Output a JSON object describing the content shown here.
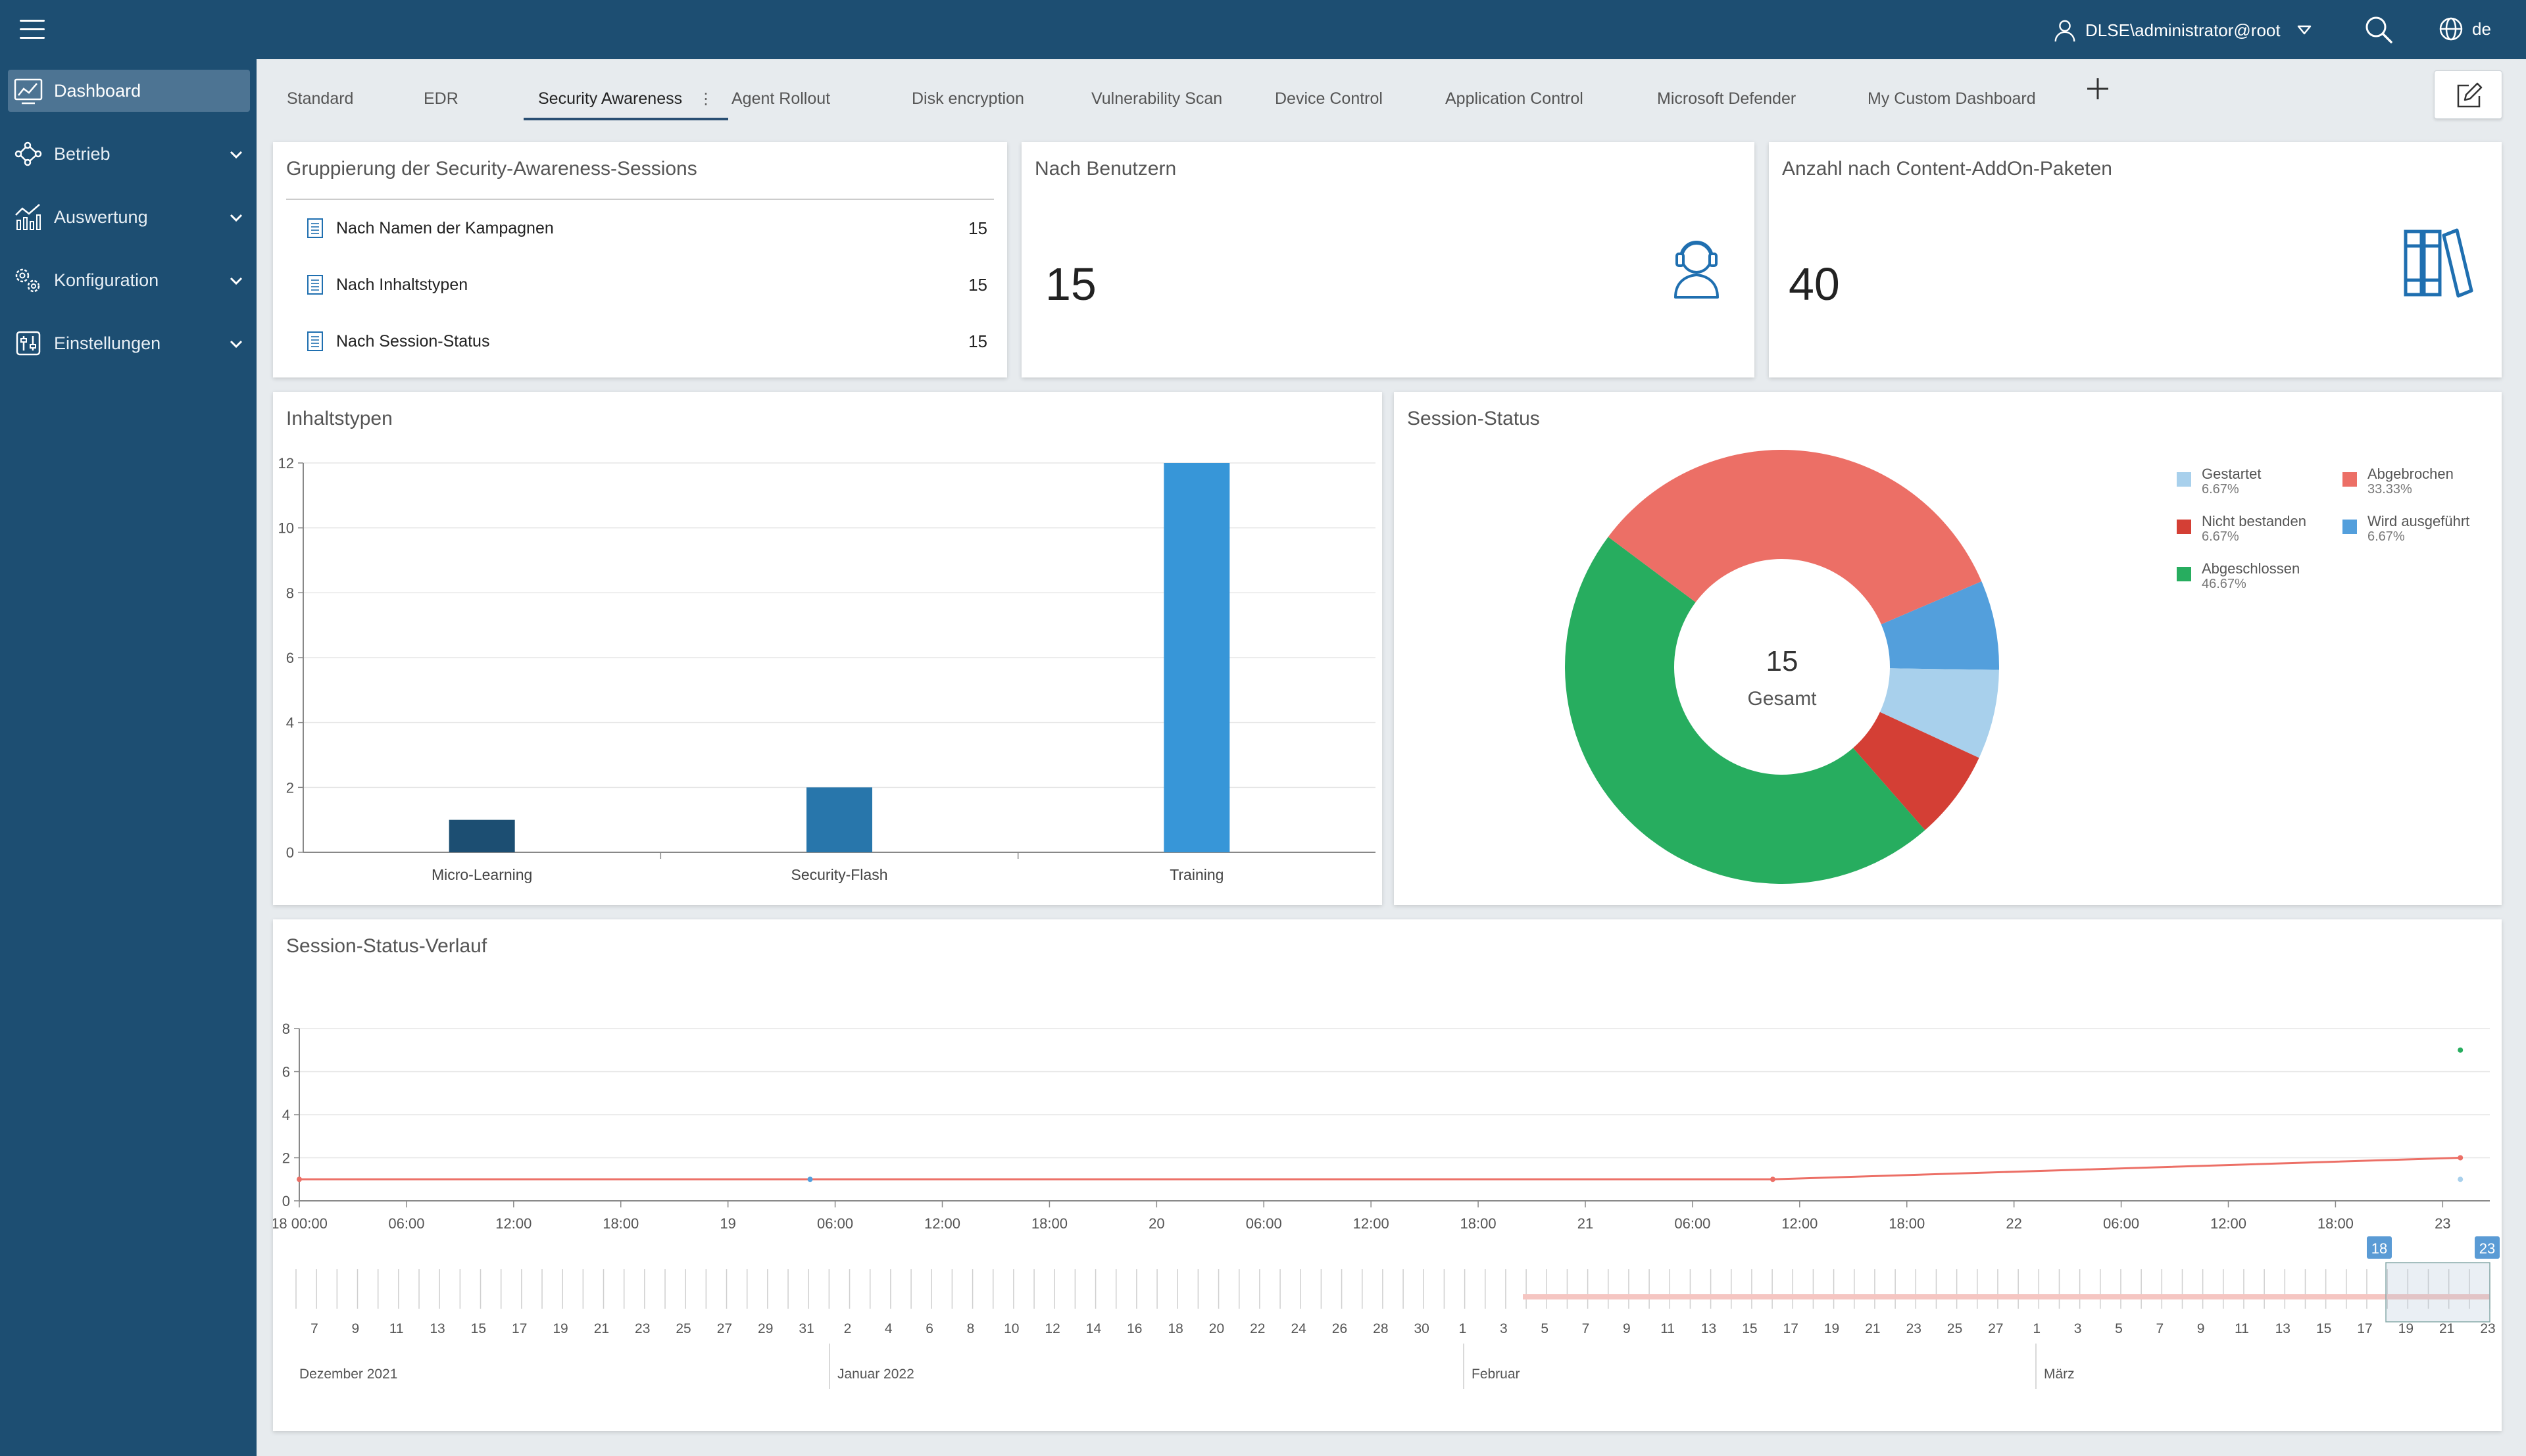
{
  "topbar": {
    "user": "DLSE\\administrator@root",
    "language": "de"
  },
  "sidebar": {
    "items": [
      {
        "label": "Dashboard",
        "icon": "dashboard-icon",
        "active": true
      },
      {
        "label": "Betrieb",
        "icon": "network-icon",
        "expandable": true
      },
      {
        "label": "Auswertung",
        "icon": "analytics-icon",
        "expandable": true
      },
      {
        "label": "Konfiguration",
        "icon": "gears-icon",
        "expandable": true
      },
      {
        "label": "Einstellungen",
        "icon": "sliders-icon",
        "expandable": true
      }
    ]
  },
  "tabs": [
    {
      "label": "Standard"
    },
    {
      "label": "EDR"
    },
    {
      "label": "Security Awareness",
      "active": true
    },
    {
      "label": "Agent Rollout"
    },
    {
      "label": "Disk encryption"
    },
    {
      "label": "Vulnerability Scan"
    },
    {
      "label": "Device Control"
    },
    {
      "label": "Application Control"
    },
    {
      "label": "Microsoft Defender"
    },
    {
      "label": "My Custom Dashboard"
    }
  ],
  "widgets": {
    "grouping": {
      "title": "Gruppierung der Security-Awareness-Sessions",
      "rows": [
        {
          "label": "Nach Namen der Kampagnen",
          "count": "15"
        },
        {
          "label": "Nach Inhaltstypen",
          "count": "15"
        },
        {
          "label": "Nach Session-Status",
          "count": "15"
        }
      ]
    },
    "by_users": {
      "title": "Nach Benutzern",
      "value": "15",
      "icon": "user-headset-icon"
    },
    "by_addons": {
      "title": "Anzahl nach Content-AddOn-Paketen",
      "value": "40",
      "icon": "books-icon"
    },
    "content_types": {
      "title": "Inhaltstypen"
    },
    "session_status": {
      "title": "Session-Status",
      "center_value": "15",
      "center_label": "Gesamt"
    },
    "history": {
      "title": "Session-Status-Verlauf"
    }
  },
  "colors": {
    "brand": "#1d4e72",
    "accent": "#3796d8",
    "started": "#a8d0ec",
    "aborted": "#ec6f66",
    "failed": "#d43f35",
    "running": "#539fdc",
    "completed": "#27ad5f"
  },
  "chart_data": [
    {
      "type": "bar",
      "title": "Inhaltstypen",
      "categories": [
        "Micro-Learning",
        "Security-Flash",
        "Training"
      ],
      "values": [
        1,
        2,
        12
      ],
      "colors": [
        "#1c4e72",
        "#2876ab",
        "#3796d8"
      ],
      "ylim": [
        0,
        12
      ],
      "yticks": [
        0,
        2,
        4,
        6,
        8,
        10,
        12
      ],
      "grid": true
    },
    {
      "type": "pie",
      "title": "Session-Status",
      "total": 15,
      "slices": [
        {
          "label": "Gestartet",
          "value": 1,
          "percent": "6.67%",
          "color": "#a8d0ec"
        },
        {
          "label": "Abgebrochen",
          "value": 5,
          "percent": "33.33%",
          "color": "#ec6f66"
        },
        {
          "label": "Nicht bestanden",
          "value": 1,
          "percent": "6.67%",
          "color": "#d43f35"
        },
        {
          "label": "Wird ausgeführt",
          "value": 1,
          "percent": "6.67%",
          "color": "#539fdc"
        },
        {
          "label": "Abgeschlossen",
          "value": 7,
          "percent": "46.67%",
          "color": "#27ad5f"
        }
      ],
      "legend_position": "right"
    },
    {
      "type": "line",
      "title": "Session-Status-Verlauf",
      "ylim": [
        0,
        8
      ],
      "yticks": [
        0,
        2,
        4,
        6,
        8
      ],
      "x_tick_labels": [
        "18 00:00",
        "06:00",
        "12:00",
        "18:00",
        "19",
        "06:00",
        "12:00",
        "18:00",
        "20",
        "06:00",
        "12:00",
        "18:00",
        "21",
        "06:00",
        "12:00",
        "18:00",
        "22",
        "06:00",
        "12:00",
        "18:00",
        "23"
      ],
      "series": [
        {
          "name": "Abgebrochen",
          "color": "#ec6f66",
          "points": [
            [
              0,
              1
            ],
            [
              3,
              1
            ],
            [
              4.4,
              2
            ]
          ]
        },
        {
          "name": "Wird ausgeführt",
          "color": "#539fdc",
          "points": [
            [
              1.04,
              1
            ]
          ]
        },
        {
          "name": "Abgeschlossen",
          "color": "#27ad5f",
          "points": [
            [
              4.4,
              7
            ]
          ]
        },
        {
          "name": "Gestartet",
          "color": "#a8d0ec",
          "points": [
            [
              4.4,
              1
            ]
          ]
        }
      ],
      "navigator": {
        "day_labels": [
          "7",
          "9",
          "11",
          "13",
          "15",
          "17",
          "19",
          "21",
          "23",
          "25",
          "27",
          "29",
          "31",
          "2",
          "4",
          "6",
          "8",
          "10",
          "12",
          "14",
          "16",
          "18",
          "20",
          "22",
          "24",
          "26",
          "28",
          "30",
          "1",
          "3",
          "5",
          "7",
          "9",
          "11",
          "13",
          "15",
          "17",
          "19",
          "21",
          "23",
          "25",
          "27",
          "1",
          "3",
          "5",
          "7",
          "9",
          "11",
          "13",
          "15",
          "17",
          "19",
          "21",
          "23"
        ],
        "months": [
          "Dezember 2021",
          "Januar 2022",
          "Februar",
          "März"
        ],
        "range_start_label": "18",
        "range_end_label": "23"
      }
    }
  ]
}
